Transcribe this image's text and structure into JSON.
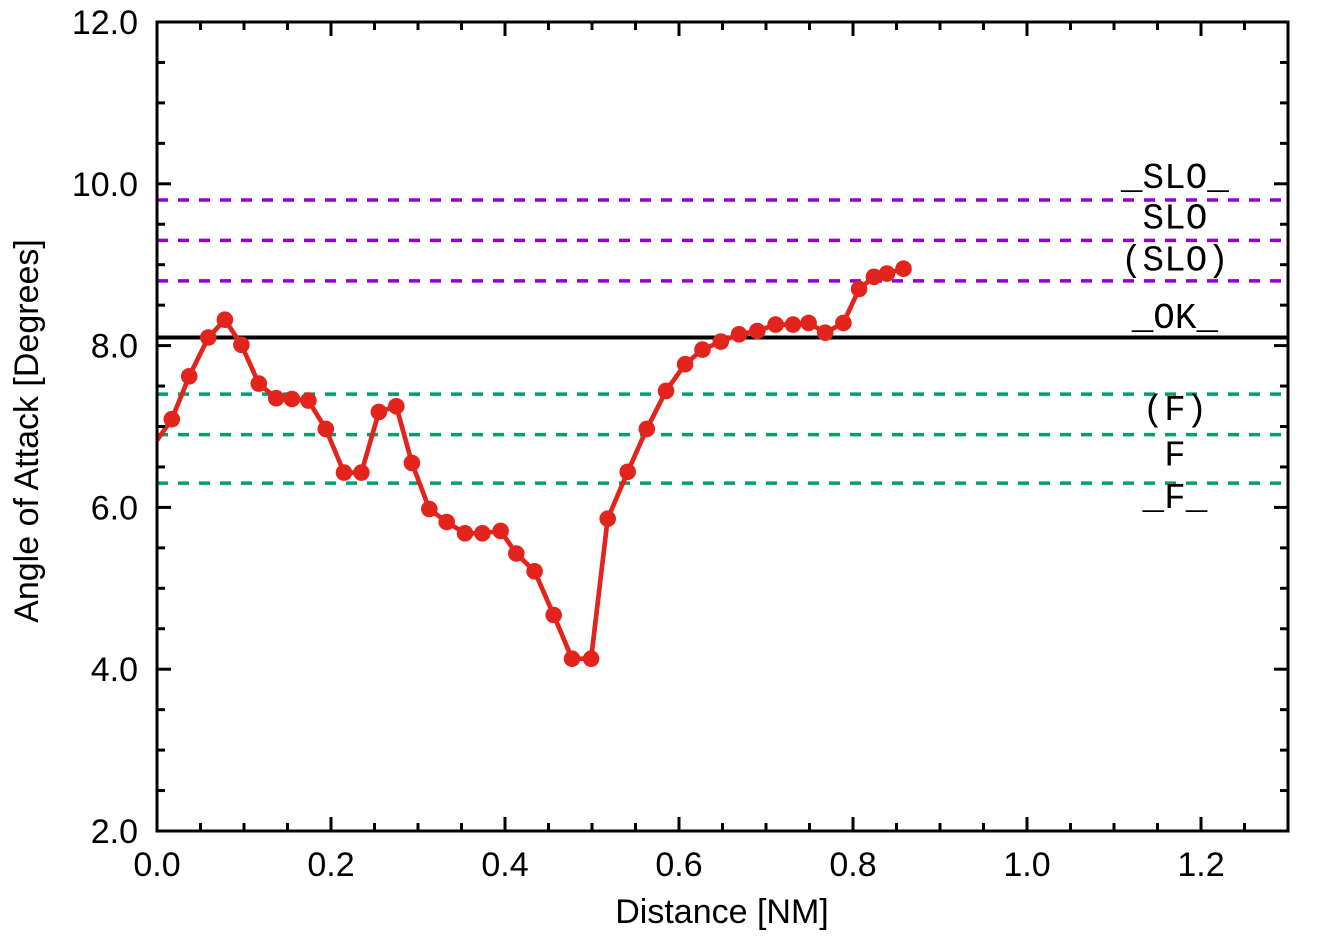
{
  "chart_data": {
    "type": "line",
    "title": "",
    "xlabel": "Distance [NM]",
    "ylabel": "Angle of Attack [Degrees]",
    "xlim": [
      0.0,
      1.3
    ],
    "ylim": [
      2.0,
      12.0
    ],
    "grid": false,
    "legend_position": "none",
    "axis_color": "#000000",
    "x_ticks": {
      "minor_step": 0.05,
      "major_values": [
        0.0,
        0.2,
        0.4,
        0.6,
        0.8,
        1.0,
        1.2
      ],
      "major_labels": [
        "0.0",
        "0.2",
        "0.4",
        "0.6",
        "0.8",
        "1.0",
        "1.2"
      ]
    },
    "y_ticks": {
      "minor_step": 0.5,
      "major_values": [
        2.0,
        4.0,
        6.0,
        8.0,
        10.0,
        12.0
      ],
      "major_labels": [
        "2.0",
        "4.0",
        "6.0",
        "8.0",
        "10.0",
        "12.0"
      ]
    },
    "series": [
      {
        "name": "angle-of-attack-trace",
        "color": "#e3241d",
        "marker": "filled-circle",
        "line_start": [
          0.0,
          6.83
        ],
        "points": [
          [
            0.017,
            7.09
          ],
          [
            0.037,
            7.62
          ],
          [
            0.059,
            8.1
          ],
          [
            0.078,
            8.32
          ],
          [
            0.097,
            8.01
          ],
          [
            0.117,
            7.53
          ],
          [
            0.137,
            7.35
          ],
          [
            0.155,
            7.34
          ],
          [
            0.174,
            7.32
          ],
          [
            0.194,
            6.97
          ],
          [
            0.215,
            6.43
          ],
          [
            0.235,
            6.43
          ],
          [
            0.255,
            7.18
          ],
          [
            0.275,
            7.25
          ],
          [
            0.293,
            6.55
          ],
          [
            0.313,
            5.98
          ],
          [
            0.333,
            5.82
          ],
          [
            0.354,
            5.68
          ],
          [
            0.374,
            5.68
          ],
          [
            0.395,
            5.71
          ],
          [
            0.413,
            5.43
          ],
          [
            0.434,
            5.21
          ],
          [
            0.456,
            4.67
          ],
          [
            0.477,
            4.13
          ],
          [
            0.499,
            4.13
          ],
          [
            0.518,
            5.86
          ],
          [
            0.541,
            6.44
          ],
          [
            0.563,
            6.97
          ],
          [
            0.585,
            7.44
          ],
          [
            0.607,
            7.77
          ],
          [
            0.627,
            7.95
          ],
          [
            0.648,
            8.05
          ],
          [
            0.669,
            8.14
          ],
          [
            0.69,
            8.18
          ],
          [
            0.711,
            8.26
          ],
          [
            0.731,
            8.26
          ],
          [
            0.749,
            8.28
          ],
          [
            0.768,
            8.16
          ],
          [
            0.789,
            8.28
          ],
          [
            0.807,
            8.7
          ],
          [
            0.824,
            8.85
          ],
          [
            0.839,
            8.89
          ],
          [
            0.858,
            8.95
          ]
        ]
      }
    ],
    "reference_lines": [
      {
        "y": 9.8,
        "color": "#9400d3",
        "dashed": true
      },
      {
        "y": 9.3,
        "color": "#9400d3",
        "dashed": true
      },
      {
        "y": 8.8,
        "color": "#9400d3",
        "dashed": true
      },
      {
        "y": 8.1,
        "color": "#000000",
        "dashed": false
      },
      {
        "y": 7.4,
        "color": "#009e73",
        "dashed": true
      },
      {
        "y": 6.9,
        "color": "#009e73",
        "dashed": true
      },
      {
        "y": 6.3,
        "color": "#009e73",
        "dashed": true
      }
    ],
    "band_labels": {
      "x_center": 1.17,
      "color": "#000000",
      "items": [
        {
          "text": "_SLO_",
          "y": 9.95
        },
        {
          "text": "SLO",
          "y": 9.45
        },
        {
          "text": "(SLO)",
          "y": 8.93
        },
        {
          "text": "_OK_",
          "y": 8.22
        },
        {
          "text": "(F)",
          "y": 7.08
        },
        {
          "text": "F",
          "y": 6.52
        },
        {
          "text": "_F_",
          "y": 5.99
        }
      ]
    }
  }
}
